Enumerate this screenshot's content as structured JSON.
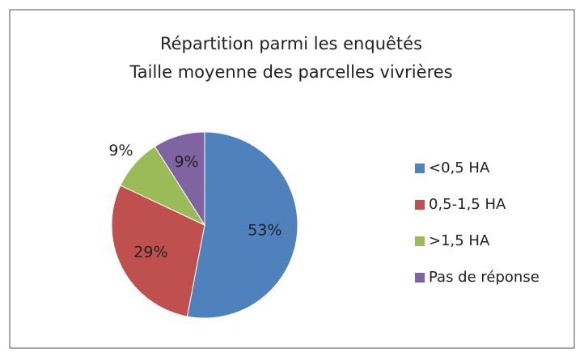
{
  "chart_data": {
    "type": "pie",
    "title": [
      "Répartition parmi les enquêtés",
      "Taille moyenne des parcelles vivrières"
    ],
    "categories": [
      "<0,5 HA",
      "0,5-1,5 HA",
      ">1,5 HA",
      "Pas de réponse"
    ],
    "values": [
      53,
      29,
      9,
      9
    ],
    "value_labels": [
      "53%",
      "29%",
      "9%",
      "9%"
    ],
    "colors": [
      "#4f81bd",
      "#c0504d",
      "#9bbb59",
      "#8064a2"
    ],
    "legend": "right"
  }
}
